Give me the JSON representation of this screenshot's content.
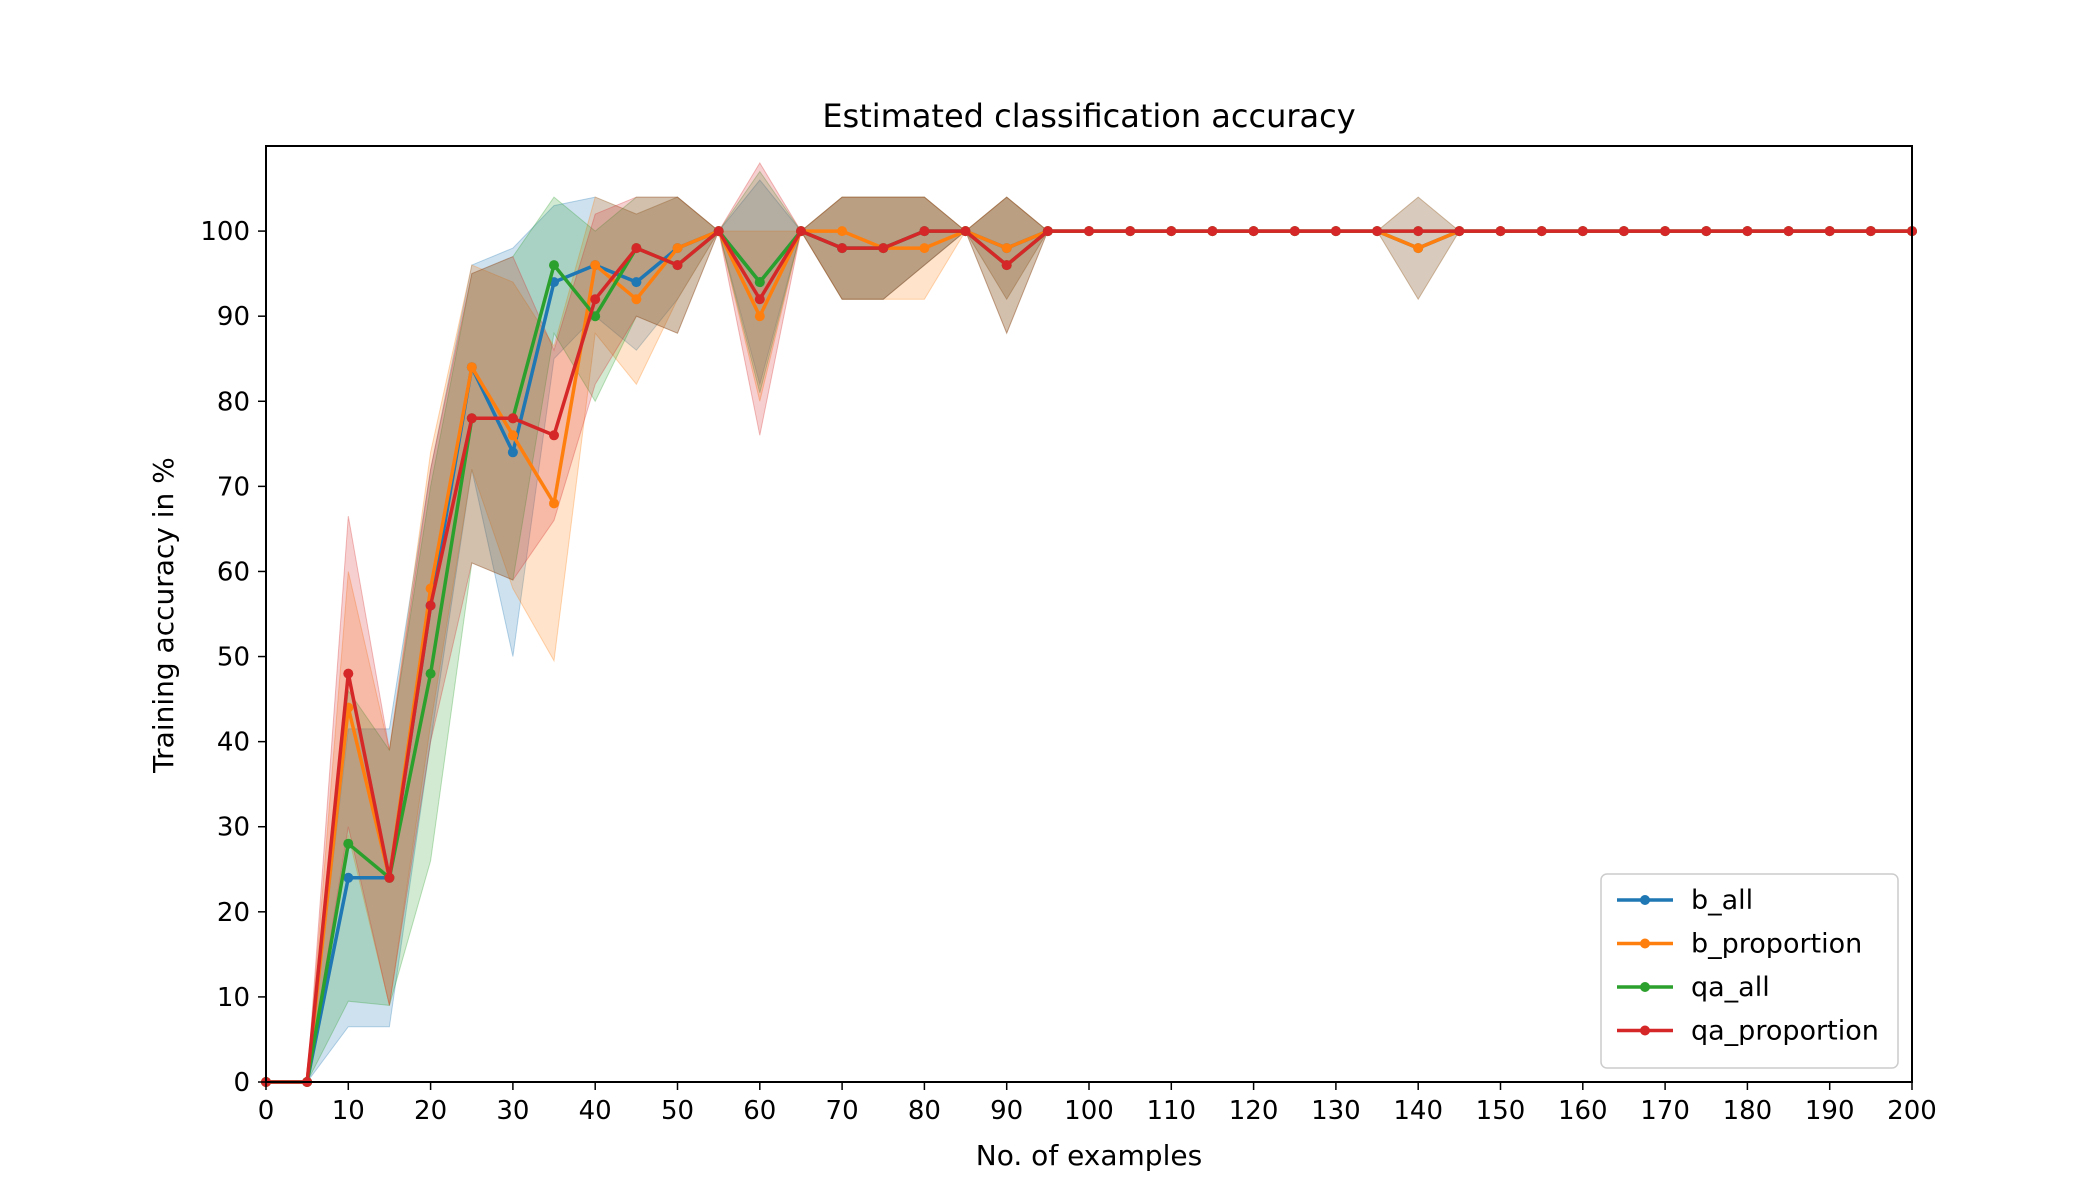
{
  "chart_data": {
    "type": "line",
    "title": "Estimated classification accuracy",
    "xlabel": "No. of examples",
    "ylabel": "Training accuracy in %",
    "xlim": [
      0,
      200
    ],
    "ylim": [
      0,
      110
    ],
    "xticks": [
      0,
      10,
      20,
      30,
      40,
      50,
      60,
      70,
      80,
      90,
      100,
      110,
      120,
      130,
      140,
      150,
      160,
      170,
      180,
      190,
      200
    ],
    "yticks": [
      0,
      10,
      20,
      30,
      40,
      50,
      60,
      70,
      80,
      90,
      100
    ],
    "x": [
      0,
      5,
      10,
      15,
      20,
      25,
      30,
      35,
      40,
      45,
      50,
      55,
      60,
      65,
      70,
      75,
      80,
      85,
      90,
      95,
      100,
      105,
      110,
      115,
      120,
      125,
      130,
      135,
      140,
      145,
      150,
      155,
      160,
      165,
      170,
      175,
      180,
      185,
      190,
      195,
      200
    ],
    "legend_position": "lower-right",
    "grid": false,
    "series": [
      {
        "name": "b_all",
        "color": "#1f77b4",
        "values": [
          0,
          0,
          24,
          24,
          56,
          84,
          74,
          94,
          96,
          94,
          98,
          100,
          94,
          100,
          98,
          98,
          100,
          100,
          98,
          100,
          100,
          100,
          100,
          100,
          100,
          100,
          100,
          100,
          98,
          100,
          100,
          100,
          100,
          100,
          100,
          100,
          100,
          100,
          100,
          100,
          100
        ],
        "lower": [
          0,
          0,
          6.5,
          6.5,
          40,
          72,
          50,
          85,
          90,
          86,
          92,
          100,
          82,
          100,
          92,
          92,
          96,
          100,
          92,
          100,
          100,
          100,
          100,
          100,
          100,
          100,
          100,
          100,
          92,
          100,
          100,
          100,
          100,
          100,
          100,
          100,
          100,
          100,
          100,
          100,
          100
        ],
        "upper": [
          0,
          0,
          41.5,
          41.5,
          72,
          96,
          98,
          103,
          104,
          102,
          104,
          100,
          106,
          100,
          104,
          104,
          104,
          100,
          104,
          100,
          100,
          100,
          100,
          100,
          100,
          100,
          100,
          100,
          104,
          100,
          100,
          100,
          100,
          100,
          100,
          100,
          100,
          100,
          100,
          100,
          100
        ]
      },
      {
        "name": "b_proportion",
        "color": "#ff7f0e",
        "values": [
          0,
          0,
          44,
          24,
          58,
          84,
          76,
          68,
          96,
          92,
          98,
          100,
          90,
          100,
          100,
          98,
          98,
          100,
          98,
          100,
          100,
          100,
          100,
          100,
          100,
          100,
          100,
          100,
          98,
          100,
          100,
          100,
          100,
          100,
          100,
          100,
          100,
          100,
          100,
          100,
          100
        ],
        "lower": [
          0,
          0,
          29,
          9,
          42,
          72,
          58,
          49.5,
          88,
          82,
          92,
          100,
          80,
          100,
          92,
          92,
          92,
          100,
          92,
          100,
          100,
          100,
          100,
          100,
          100,
          100,
          100,
          100,
          92,
          100,
          100,
          100,
          100,
          100,
          100,
          100,
          100,
          100,
          100,
          100,
          100
        ],
        "upper": [
          0,
          0,
          60,
          39,
          74,
          96,
          94,
          86.5,
          104,
          102,
          104,
          100,
          100,
          100,
          104,
          104,
          104,
          100,
          104,
          100,
          100,
          100,
          100,
          100,
          100,
          100,
          100,
          100,
          104,
          100,
          100,
          100,
          100,
          100,
          100,
          100,
          100,
          100,
          100,
          100,
          100
        ]
      },
      {
        "name": "qa_all",
        "color": "#2ca02c",
        "values": [
          0,
          0,
          28,
          24,
          48,
          78,
          78,
          96,
          90,
          98,
          96,
          100,
          94,
          100,
          98,
          98,
          100,
          100,
          96,
          100,
          100,
          100,
          100,
          100,
          100,
          100,
          100,
          100,
          100,
          100,
          100,
          100,
          100,
          100,
          100,
          100,
          100,
          100,
          100,
          100,
          100
        ],
        "lower": [
          0,
          0,
          9.5,
          9,
          26,
          61,
          59,
          88,
          80,
          90,
          88,
          100,
          81,
          100,
          92,
          92,
          96,
          100,
          88,
          100,
          100,
          100,
          100,
          100,
          100,
          100,
          100,
          100,
          100,
          100,
          100,
          100,
          100,
          100,
          100,
          100,
          100,
          100,
          100,
          100,
          100
        ],
        "upper": [
          0,
          0,
          46,
          39,
          70,
          95,
          97,
          104,
          100,
          104,
          104,
          100,
          107,
          100,
          104,
          104,
          104,
          100,
          104,
          100,
          100,
          100,
          100,
          100,
          100,
          100,
          100,
          100,
          100,
          100,
          100,
          100,
          100,
          100,
          100,
          100,
          100,
          100,
          100,
          100,
          100
        ]
      },
      {
        "name": "qa_proportion",
        "color": "#d62728",
        "values": [
          0,
          0,
          48,
          24,
          56,
          78,
          78,
          76,
          92,
          98,
          96,
          100,
          92,
          100,
          98,
          98,
          100,
          100,
          96,
          100,
          100,
          100,
          100,
          100,
          100,
          100,
          100,
          100,
          100,
          100,
          100,
          100,
          100,
          100,
          100,
          100,
          100,
          100,
          100,
          100,
          100
        ],
        "lower": [
          0,
          0,
          30,
          9,
          40,
          61,
          59,
          66,
          82,
          90,
          88,
          100,
          76,
          100,
          92,
          92,
          96,
          100,
          88,
          100,
          100,
          100,
          100,
          100,
          100,
          100,
          100,
          100,
          100,
          100,
          100,
          100,
          100,
          100,
          100,
          100,
          100,
          100,
          100,
          100,
          100
        ],
        "upper": [
          0,
          0,
          66.5,
          39,
          72,
          95,
          97,
          86,
          102,
          104,
          104,
          100,
          108,
          100,
          104,
          104,
          104,
          100,
          104,
          100,
          100,
          100,
          100,
          100,
          100,
          100,
          100,
          100,
          100,
          100,
          100,
          100,
          100,
          100,
          100,
          100,
          100,
          100,
          100,
          100,
          100
        ]
      }
    ]
  }
}
